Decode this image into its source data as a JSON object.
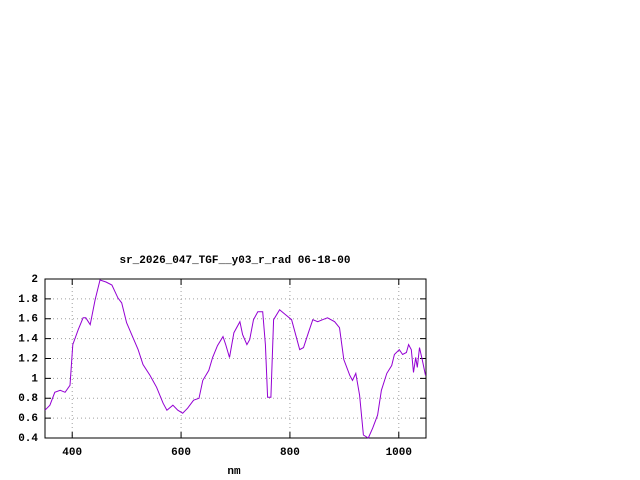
{
  "chart_data": {
    "type": "line",
    "title": "sr_2026_047_TGF__y03_r_rad 06-18-00",
    "x_label": "nm",
    "x": [
      350,
      359,
      368,
      378,
      387,
      396,
      401,
      411,
      420,
      425,
      433,
      442,
      451,
      462,
      473,
      484,
      491,
      500,
      510,
      521,
      530,
      543,
      555,
      567,
      574,
      585,
      594,
      603,
      612,
      623,
      633,
      640,
      651,
      658,
      667,
      677,
      682,
      689,
      697,
      708,
      713,
      721,
      726,
      733,
      741,
      750,
      755,
      759,
      765,
      770,
      781,
      792,
      803,
      818,
      825,
      834,
      842,
      851,
      860,
      869,
      882,
      891,
      899,
      910,
      915,
      921,
      928,
      935,
      944,
      952,
      961,
      968,
      978,
      987,
      992,
      1001,
      1007,
      1014,
      1018,
      1023,
      1027,
      1031,
      1034,
      1038,
      1043,
      1049
    ],
    "values": [
      0.68,
      0.73,
      0.86,
      0.88,
      0.86,
      0.93,
      1.34,
      1.49,
      1.61,
      1.61,
      1.54,
      1.79,
      1.99,
      1.97,
      1.94,
      1.81,
      1.76,
      1.56,
      1.43,
      1.29,
      1.14,
      1.03,
      0.91,
      0.75,
      0.68,
      0.73,
      0.68,
      0.65,
      0.7,
      0.78,
      0.8,
      0.98,
      1.08,
      1.21,
      1.33,
      1.42,
      1.34,
      1.21,
      1.46,
      1.57,
      1.44,
      1.34,
      1.39,
      1.59,
      1.67,
      1.67,
      1.34,
      0.81,
      0.81,
      1.59,
      1.69,
      1.64,
      1.59,
      1.29,
      1.31,
      1.46,
      1.59,
      1.57,
      1.59,
      1.61,
      1.57,
      1.51,
      1.19,
      1.03,
      0.98,
      1.05,
      0.83,
      0.43,
      0.4,
      0.5,
      0.63,
      0.88,
      1.05,
      1.13,
      1.24,
      1.29,
      1.24,
      1.26,
      1.34,
      1.29,
      1.06,
      1.21,
      1.11,
      1.31,
      1.19,
      1.03
    ],
    "color": "#9400d3",
    "xlim": [
      350,
      1050
    ],
    "ylim": [
      0.4,
      2
    ],
    "xticks": [
      400,
      600,
      800,
      1000
    ],
    "yticks": [
      0.4,
      0.6,
      0.8,
      1,
      1.2,
      1.4,
      1.6,
      1.8,
      2
    ],
    "grid": true
  }
}
